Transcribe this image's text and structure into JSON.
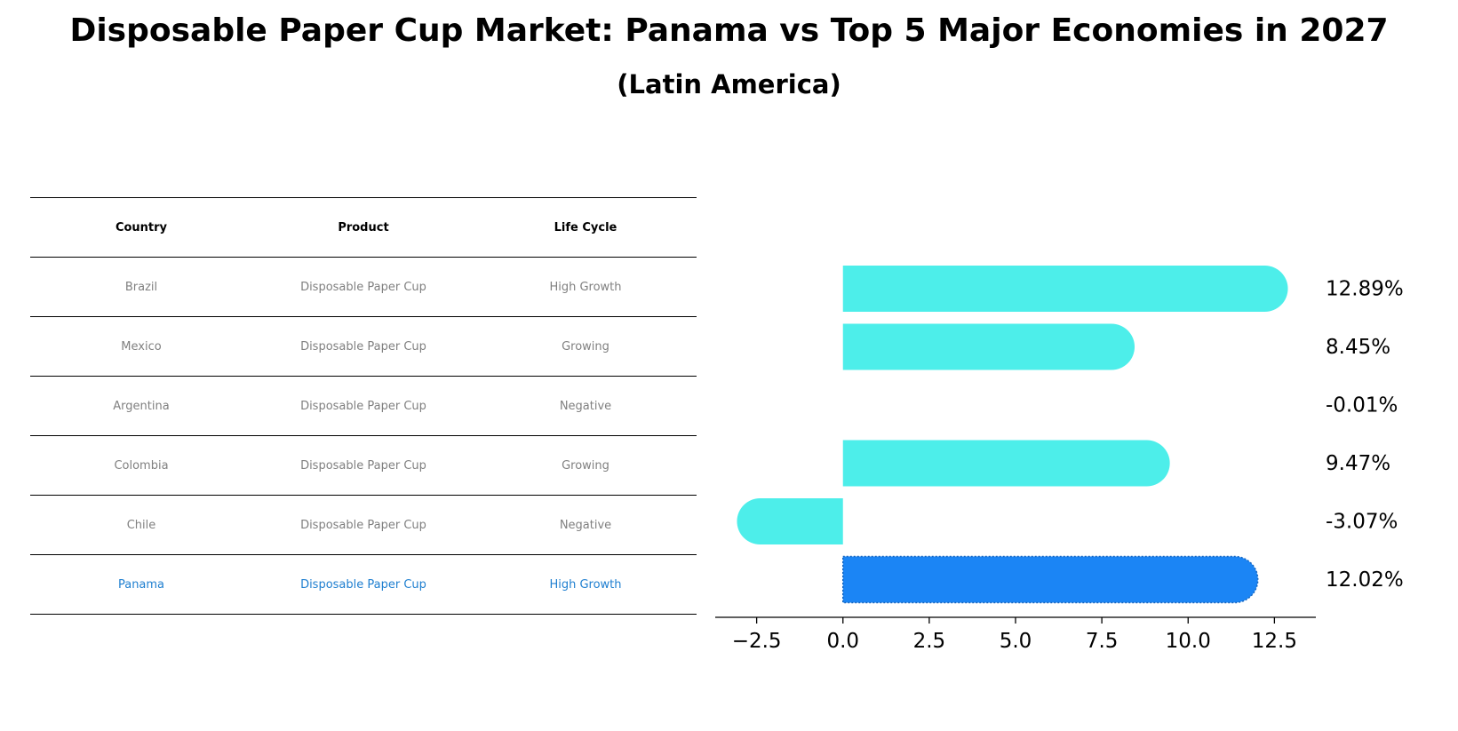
{
  "header": {
    "title": "Disposable Paper Cup Market: Panama vs Top 5 Major Economies in 2027",
    "subtitle": "(Latin America)"
  },
  "table": {
    "columns": [
      "Country",
      "Product",
      "Life Cycle"
    ],
    "rows": [
      {
        "country": "Brazil",
        "product": "Disposable Paper Cup",
        "life_cycle": "High Growth",
        "highlight": false
      },
      {
        "country": "Mexico",
        "product": "Disposable Paper Cup",
        "life_cycle": "Growing",
        "highlight": false
      },
      {
        "country": "Argentina",
        "product": "Disposable Paper Cup",
        "life_cycle": "Negative",
        "highlight": false
      },
      {
        "country": "Colombia",
        "product": "Disposable Paper Cup",
        "life_cycle": "Growing",
        "highlight": false
      },
      {
        "country": "Chile",
        "product": "Disposable Paper Cup",
        "life_cycle": "Negative",
        "highlight": false
      },
      {
        "country": "Panama",
        "product": "Disposable Paper Cup",
        "life_cycle": "High Growth",
        "highlight": true
      }
    ]
  },
  "chart_data": {
    "type": "bar",
    "orientation": "horizontal",
    "categories": [
      "Brazil",
      "Mexico",
      "Argentina",
      "Colombia",
      "Chile",
      "Panama"
    ],
    "values": [
      12.89,
      8.45,
      -0.01,
      9.47,
      -3.07,
      12.02
    ],
    "value_labels": [
      "12.89%",
      "8.45%",
      "-0.01%",
      "9.47%",
      "-3.07%",
      "12.02%"
    ],
    "xlim": [
      -3.7,
      13.7
    ],
    "xticks": [
      -2.5,
      0.0,
      2.5,
      5.0,
      7.5,
      10.0,
      12.5
    ],
    "xtick_labels": [
      "−2.5",
      "0.0",
      "2.5",
      "5.0",
      "7.5",
      "10.0",
      "12.5"
    ],
    "colors": {
      "default": "#4deeea",
      "highlight": "#1b85f5"
    },
    "highlight_index": 5,
    "grid": false
  }
}
